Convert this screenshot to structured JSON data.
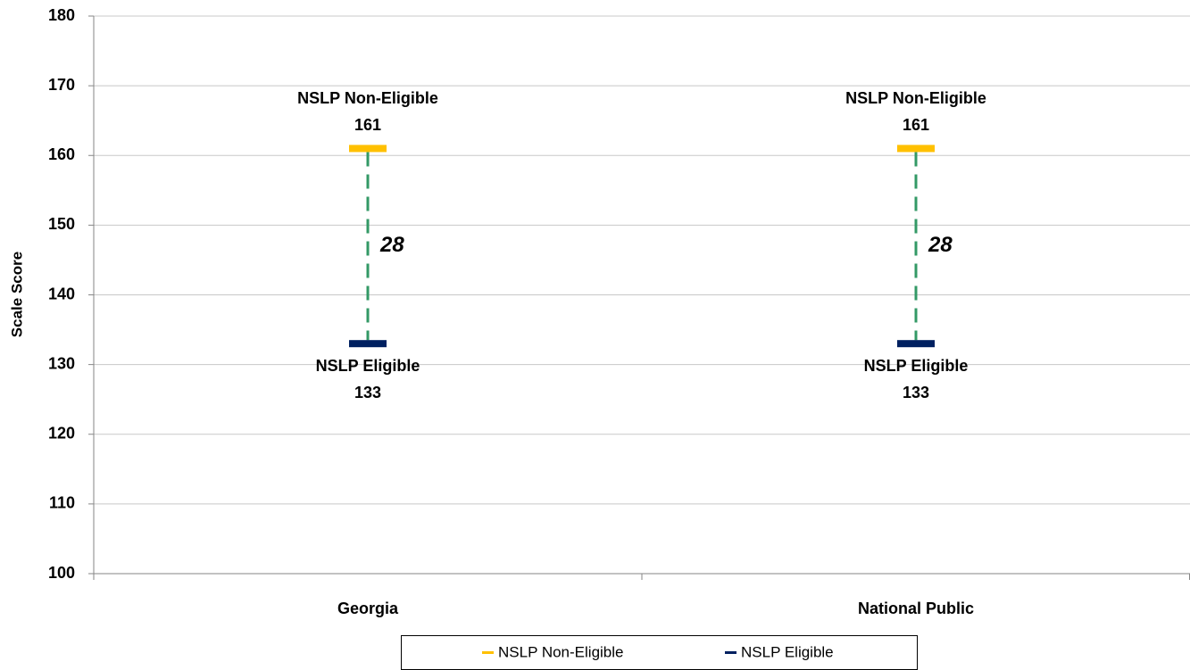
{
  "chart_data": {
    "type": "gap",
    "y_label": "Scale Score",
    "categories": [
      "Georgia",
      "National Public"
    ],
    "series": [
      {
        "name": "NSLP Non-Eligible",
        "color": "#ffc000",
        "values": [
          161,
          161
        ]
      },
      {
        "name": "NSLP Eligible",
        "color": "#002060",
        "values": [
          133,
          133
        ]
      }
    ],
    "gaps": [
      28,
      28
    ],
    "gap_color": "#339966",
    "ylim": [
      100,
      180
    ],
    "yticks": [
      100,
      110,
      120,
      130,
      140,
      150,
      160,
      170,
      180
    ],
    "grid": true,
    "legend": "bottom"
  }
}
